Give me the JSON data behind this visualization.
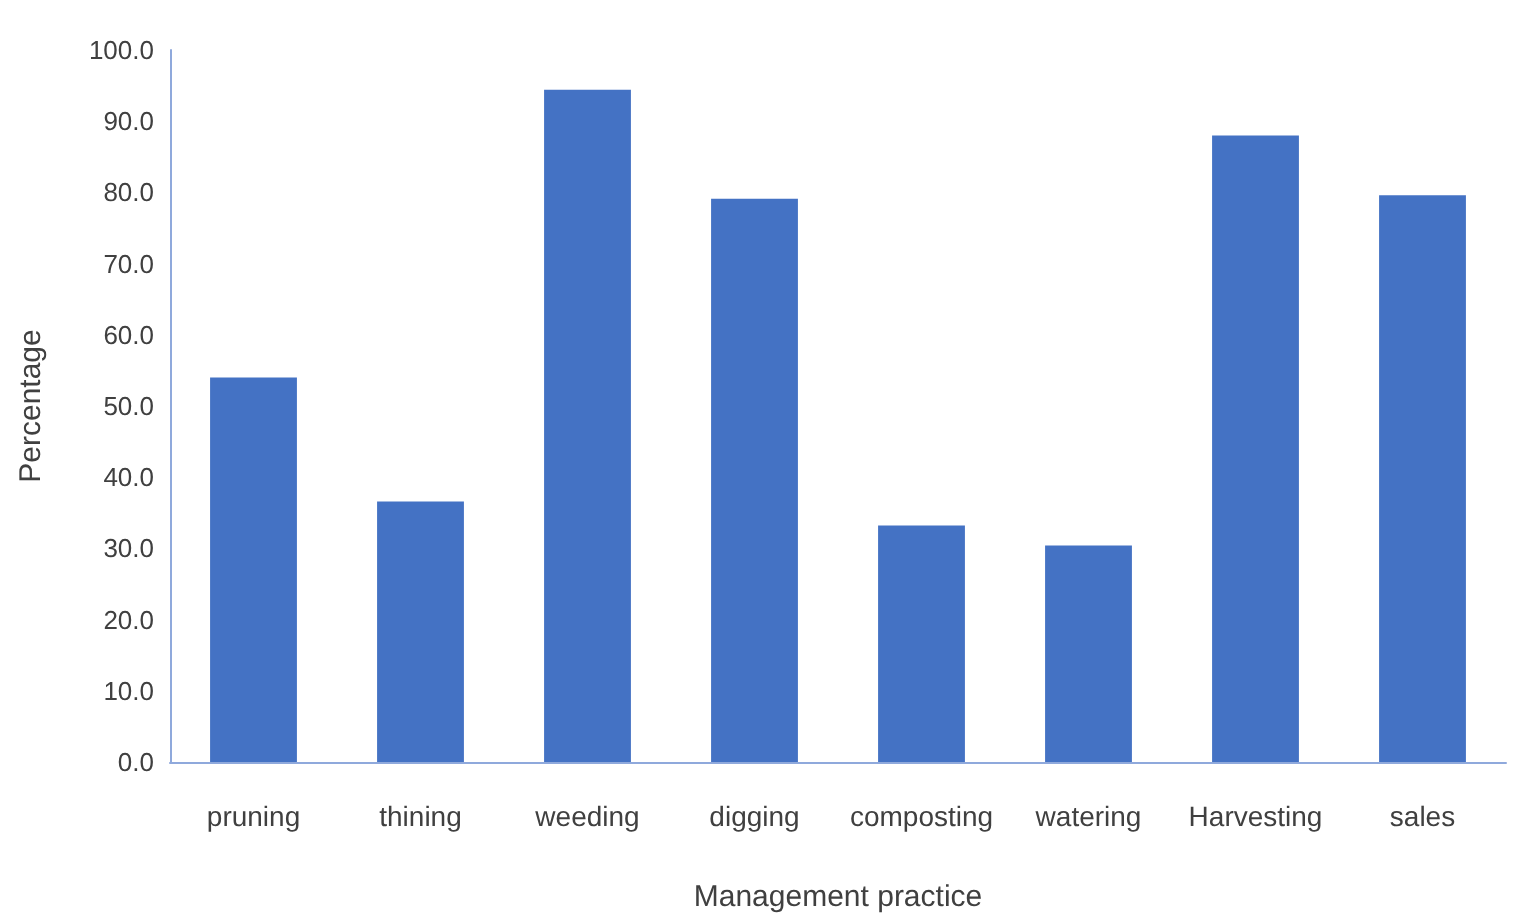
{
  "chart_data": {
    "type": "bar",
    "xlabel": "Management practice",
    "ylabel": "Percentage",
    "categories": [
      "pruning",
      "thining",
      "weeding",
      "digging",
      "composting",
      "watering",
      "Harvesting",
      "sales"
    ],
    "values": [
      54.0,
      36.6,
      94.4,
      79.1,
      33.2,
      30.4,
      88.0,
      79.6
    ],
    "color": "#4472c4",
    "ylim": [
      0,
      100
    ],
    "yticks": [
      {
        "value": 0,
        "label": "0.0"
      },
      {
        "value": 10,
        "label": "10.0"
      },
      {
        "value": 20,
        "label": "20.0"
      },
      {
        "value": 30,
        "label": "30.0"
      },
      {
        "value": 40,
        "label": "40.0"
      },
      {
        "value": 50,
        "label": "50.0"
      },
      {
        "value": 60,
        "label": "60.0"
      },
      {
        "value": 70,
        "label": "70.0"
      },
      {
        "value": 80,
        "label": "80.0"
      },
      {
        "value": 90,
        "label": "90.0"
      },
      {
        "value": 100,
        "label": "100.0"
      }
    ],
    "grid": false
  }
}
